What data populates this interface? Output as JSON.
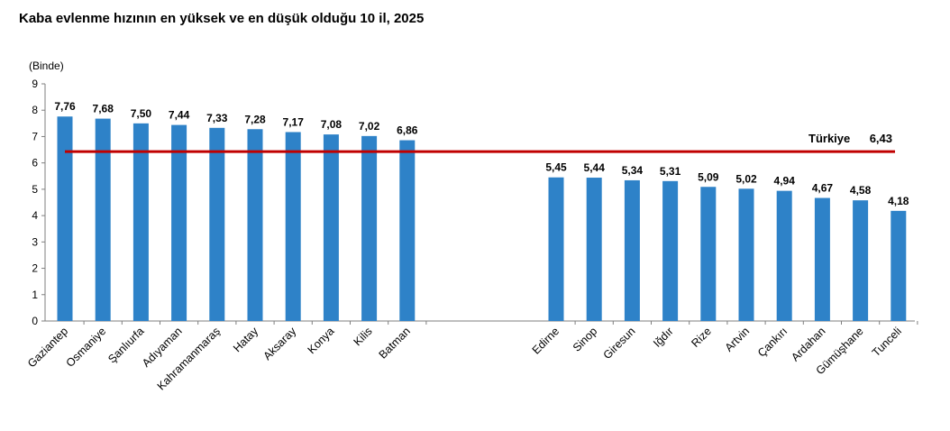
{
  "title": "Kaba evlenme hızının en yüksek ve en düşük olduğu 10 il, 2025",
  "chart_data": {
    "type": "bar",
    "title": "Kaba evlenme hızının en yüksek ve en düşük olduğu 10 il, 2025",
    "ylabel": "(Binde)",
    "xlabel": "",
    "ylim": [
      0,
      9
    ],
    "yticks": [
      0,
      1,
      2,
      3,
      4,
      5,
      6,
      7,
      8,
      9
    ],
    "grid": false,
    "bar_color": "#2e82c8",
    "reference_line": {
      "label": "Türkiye",
      "value": 6.43,
      "value_label": "6,43",
      "color": "#c00000"
    },
    "groups": [
      {
        "categories": [
          "Gaziantep",
          "Osmaniye",
          "Şanlıurfa",
          "Adıyaman",
          "Kahramanmaraş",
          "Hatay",
          "Aksaray",
          "Konya",
          "Kilis",
          "Batman"
        ],
        "values": [
          7.76,
          7.68,
          7.5,
          7.44,
          7.33,
          7.28,
          7.17,
          7.08,
          7.02,
          6.86
        ],
        "labels": [
          "7,76",
          "7,68",
          "7,50",
          "7,44",
          "7,33",
          "7,28",
          "7,17",
          "7,08",
          "7,02",
          "6,86"
        ]
      },
      {
        "categories": [
          "Edirne",
          "Sinop",
          "Giresun",
          "Iğdır",
          "Rize",
          "Artvin",
          "Çankırı",
          "Ardahan",
          "Gümüşhane",
          "Tunceli"
        ],
        "values": [
          5.45,
          5.44,
          5.34,
          5.31,
          5.09,
          5.02,
          4.94,
          4.67,
          4.58,
          4.18
        ],
        "labels": [
          "5,45",
          "5,44",
          "5,34",
          "5,31",
          "5,09",
          "5,02",
          "4,94",
          "4,67",
          "4,58",
          "4,18"
        ]
      }
    ]
  }
}
